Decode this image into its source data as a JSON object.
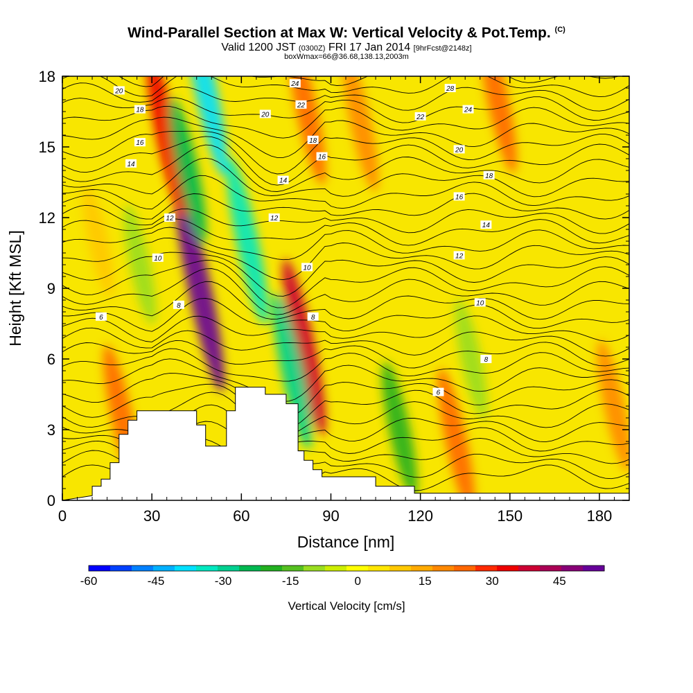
{
  "header": {
    "title": "Wind-Parallel Section at Max W: Vertical Velocity & Pot.Temp.",
    "copyright": "(C)",
    "valid_prefix": "Valid 1200 JST",
    "valid_utc": "(0300Z)",
    "valid_date": "FRI 17 Jan 2014",
    "forecast_info": "[9hrFcst@2148z]",
    "box_info": "boxWmax=66@36.68,138.13,2003m"
  },
  "chart_data": {
    "type": "heatmap",
    "xlabel": "Distance [nm]",
    "ylabel": "Height [Kft MSL]",
    "xlim": [
      0,
      190
    ],
    "ylim": [
      0,
      18
    ],
    "x_ticks": [
      0,
      30,
      60,
      90,
      120,
      150,
      180
    ],
    "y_ticks": [
      0,
      3,
      6,
      9,
      12,
      15,
      18
    ],
    "colorbar": {
      "title": "Vertical Velocity [cm/s]",
      "range": [
        -60,
        55
      ],
      "tick_values": [
        -60,
        -45,
        -30,
        -15,
        0,
        15,
        30,
        45
      ],
      "colors": [
        "#0000ff",
        "#0040ff",
        "#0080ff",
        "#00b0ff",
        "#00e0ff",
        "#00e8c0",
        "#00d090",
        "#00b850",
        "#22b020",
        "#55c020",
        "#99dd20",
        "#ccee00",
        "#ffff00",
        "#ffe600",
        "#ffc800",
        "#ffaa00",
        "#ff8800",
        "#ff6600",
        "#ff2a00",
        "#ee0000",
        "#cc0033",
        "#aa0055",
        "#880077",
        "#660099"
      ]
    },
    "terrain_profile_nm_kft": [
      [
        0,
        0
      ],
      [
        10,
        0.2
      ],
      [
        10,
        0.6
      ],
      [
        13,
        0.6
      ],
      [
        13,
        0.9
      ],
      [
        16,
        0.9
      ],
      [
        16,
        1.6
      ],
      [
        19,
        1.6
      ],
      [
        19,
        2.8
      ],
      [
        22,
        2.8
      ],
      [
        22,
        3.4
      ],
      [
        25,
        3.4
      ],
      [
        25,
        3.8
      ],
      [
        35,
        3.8
      ],
      [
        45,
        3.8
      ],
      [
        45,
        3.2
      ],
      [
        48,
        3.2
      ],
      [
        48,
        2.3
      ],
      [
        55,
        2.3
      ],
      [
        55,
        3.8
      ],
      [
        58,
        3.8
      ],
      [
        58,
        4.8
      ],
      [
        68,
        4.8
      ],
      [
        68,
        4.5
      ],
      [
        75,
        4.5
      ],
      [
        75,
        4.1
      ],
      [
        79,
        4.1
      ],
      [
        79,
        2.1
      ],
      [
        81,
        2.1
      ],
      [
        81,
        1.7
      ],
      [
        84,
        1.7
      ],
      [
        84,
        1.3
      ],
      [
        87,
        1.3
      ],
      [
        87,
        1.0
      ],
      [
        105,
        1.0
      ],
      [
        105,
        0.6
      ],
      [
        118,
        0.6
      ],
      [
        118,
        0.3
      ],
      [
        190,
        0.3
      ],
      [
        190,
        0
      ]
    ],
    "vertical_velocity_features": [
      {
        "x": 46,
        "y": 9,
        "value": 55
      },
      {
        "x": 35,
        "y": 15.5,
        "value": 35
      },
      {
        "x": 81,
        "y": 6.5,
        "value": 40
      },
      {
        "x": 82,
        "y": 16.5,
        "value": 25
      },
      {
        "x": 100,
        "y": 16,
        "value": 20
      },
      {
        "x": 146,
        "y": 17,
        "value": 25
      },
      {
        "x": 42,
        "y": 14,
        "value": -25
      },
      {
        "x": 48,
        "y": 17.5,
        "value": -40
      },
      {
        "x": 62,
        "y": 11,
        "value": -35
      },
      {
        "x": 77,
        "y": 5.5,
        "value": -30
      },
      {
        "x": 113,
        "y": 3,
        "value": -20
      },
      {
        "x": 137,
        "y": 6,
        "value": -12
      },
      {
        "x": 26,
        "y": 10,
        "value": -12
      },
      {
        "x": 12,
        "y": 11,
        "value": 8
      },
      {
        "x": 20,
        "y": 3.5,
        "value": 25
      },
      {
        "x": 132,
        "y": 2.5,
        "value": 25
      },
      {
        "x": 185,
        "y": 4,
        "value": 18
      }
    ],
    "theta_contour_labels": [
      {
        "text": "20",
        "x": 19,
        "y": 17.4
      },
      {
        "text": "18",
        "x": 26,
        "y": 16.6
      },
      {
        "text": "16",
        "x": 26,
        "y": 15.2
      },
      {
        "text": "14",
        "x": 23,
        "y": 14.3
      },
      {
        "text": "12",
        "x": 36,
        "y": 12.0
      },
      {
        "text": "10",
        "x": 32,
        "y": 10.3
      },
      {
        "text": "8",
        "x": 39,
        "y": 8.3
      },
      {
        "text": "6",
        "x": 13,
        "y": 7.8
      },
      {
        "text": "24",
        "x": 78,
        "y": 17.7
      },
      {
        "text": "22",
        "x": 80,
        "y": 16.8
      },
      {
        "text": "20",
        "x": 68,
        "y": 16.4
      },
      {
        "text": "18",
        "x": 84,
        "y": 15.3
      },
      {
        "text": "16",
        "x": 87,
        "y": 14.6
      },
      {
        "text": "14",
        "x": 74,
        "y": 13.6
      },
      {
        "text": "12",
        "x": 71,
        "y": 12.0
      },
      {
        "text": "10",
        "x": 82,
        "y": 9.9
      },
      {
        "text": "8",
        "x": 84,
        "y": 7.8
      },
      {
        "text": "28",
        "x": 130,
        "y": 17.5
      },
      {
        "text": "24",
        "x": 136,
        "y": 16.6
      },
      {
        "text": "22",
        "x": 120,
        "y": 16.3
      },
      {
        "text": "20",
        "x": 133,
        "y": 14.9
      },
      {
        "text": "18",
        "x": 143,
        "y": 13.8
      },
      {
        "text": "16",
        "x": 133,
        "y": 12.9
      },
      {
        "text": "14",
        "x": 142,
        "y": 11.7
      },
      {
        "text": "12",
        "x": 133,
        "y": 10.4
      },
      {
        "text": "10",
        "x": 140,
        "y": 8.4
      },
      {
        "text": "8",
        "x": 142,
        "y": 6.0
      },
      {
        "text": "6",
        "x": 126,
        "y": 4.6
      }
    ]
  }
}
